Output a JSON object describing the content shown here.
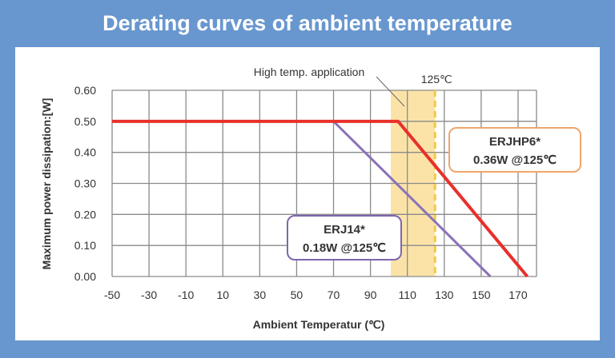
{
  "chart_data": {
    "type": "line",
    "title": "Derating curves of ambient temperature",
    "xlabel": "Ambient Temperatur (℃)",
    "ylabel": "Maximum power dissipation:[W]",
    "xlim": [
      -50,
      180
    ],
    "ylim": [
      0,
      0.6
    ],
    "grid": true,
    "x_ticks": [
      -50,
      -30,
      -10,
      10,
      30,
      50,
      70,
      90,
      110,
      130,
      150,
      170
    ],
    "x_tick_labels": [
      "-50",
      "-30",
      "-10",
      "10",
      "30",
      "50",
      "70",
      "90",
      "110",
      "130",
      "150",
      "170"
    ],
    "y_ticks": [
      0,
      0.1,
      0.2,
      0.3,
      0.4,
      0.5,
      0.6
    ],
    "y_tick_labels": [
      "0.00",
      "0.10",
      "0.20",
      "0.30",
      "0.40",
      "0.50",
      "0.60"
    ],
    "series": [
      {
        "name": "ERJHP6*",
        "color": "#e8302a",
        "x": [
          -50,
          105,
          175
        ],
        "y": [
          0.5,
          0.5,
          0
        ]
      },
      {
        "name": "ERJ14*",
        "color": "#8a72b8",
        "x": [
          -50,
          70,
          155
        ],
        "y": [
          0.5,
          0.5,
          0
        ]
      }
    ],
    "band": {
      "x": [
        101,
        125
      ],
      "color": "#fbe3a8",
      "label": "High temp. application"
    },
    "vline": {
      "x": 125,
      "color": "#f2c94c",
      "label": "125℃"
    },
    "annotations": [
      {
        "series": "ERJHP6*",
        "line1": "ERJHP6*",
        "line2": "0.36W @125℃",
        "border": "#f0a56a"
      },
      {
        "series": "ERJ14*",
        "line1": "ERJ14*",
        "line2": "0.18W @125℃",
        "border": "#7d66b0"
      }
    ]
  }
}
